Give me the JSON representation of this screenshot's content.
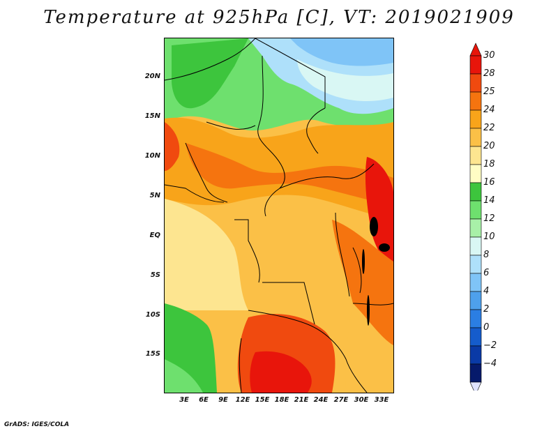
{
  "title": "Temperature at 925hPa [C], VT: 2019021909",
  "credit": "GrADS: IGES/COLA",
  "map": {
    "lat_labels": [
      "20N",
      "15N",
      "10N",
      "5N",
      "EQ",
      "5S",
      "10S",
      "15S"
    ],
    "lon_labels": [
      "3E",
      "6E",
      "9E",
      "12E",
      "15E",
      "18E",
      "21E",
      "24E",
      "27E",
      "30E",
      "33E"
    ]
  },
  "legend": {
    "labels": [
      "30",
      "28",
      "25",
      "24",
      "22",
      "20",
      "18",
      "16",
      "14",
      "12",
      "10",
      "8",
      "6",
      "4",
      "2",
      "0",
      "−2",
      "−4"
    ],
    "colors": [
      "#e8150b",
      "#f04a0f",
      "#f5740f",
      "#f8a41a",
      "#fbc047",
      "#fde590",
      "#fffdc4",
      "#3dc53d",
      "#6ee06e",
      "#a8f0a8",
      "#d9f7f4",
      "#aee0fa",
      "#7fc4f7",
      "#4ea0ec",
      "#2b7ee3",
      "#155ccc",
      "#0a3aa6",
      "#061a6b"
    ]
  }
}
